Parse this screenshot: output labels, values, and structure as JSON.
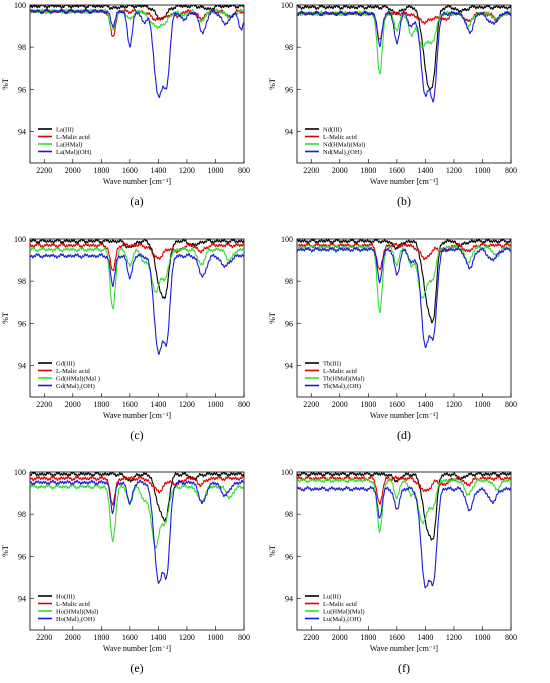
{
  "chart_data": [
    {
      "type": "line",
      "panel_label": "(a)",
      "xlabel": "Wave number [cm⁻¹]",
      "ylabel": "%T",
      "xlim": [
        2300,
        800
      ],
      "ylim": [
        92.5,
        100
      ],
      "x_ticks": [
        2200,
        2000,
        1800,
        1600,
        1400,
        1200,
        1000,
        800
      ],
      "y_ticks": [
        94,
        96,
        98,
        100
      ],
      "legend_position": "bottom-left",
      "series": [
        {
          "name": "La(III)",
          "color": "#000000",
          "baseline": 99.95,
          "peaks": [
            [
              1700,
              0.1,
              30
            ],
            [
              1380,
              0.6,
              40
            ],
            [
              1050,
              0.15,
              30
            ]
          ]
        },
        {
          "name": "L-Malic acid",
          "color": "#dd0000",
          "baseline": 99.7,
          "peaks": [
            [
              1720,
              1.2,
              18
            ],
            [
              1400,
              0.4,
              50
            ],
            [
              1270,
              0.2,
              30
            ],
            [
              1100,
              0.35,
              25
            ],
            [
              900,
              0.25,
              25
            ]
          ]
        },
        {
          "name": "La(HMal)",
          "color": "#33dd33",
          "baseline": 99.7,
          "peaks": [
            [
              1720,
              0.9,
              18
            ],
            [
              1600,
              0.4,
              20
            ],
            [
              1420,
              0.7,
              40
            ],
            [
              1350,
              0.4,
              30
            ],
            [
              1230,
              0.2,
              25
            ],
            [
              1100,
              0.5,
              25
            ],
            [
              900,
              0.3,
              25
            ]
          ]
        },
        {
          "name": "La(Mal)(OH)",
          "color": "#1a1ad8",
          "baseline": 99.7,
          "peaks": [
            [
              1720,
              0.7,
              15
            ],
            [
              1600,
              1.6,
              18
            ],
            [
              1500,
              0.5,
              20
            ],
            [
              1400,
              4.0,
              30
            ],
            [
              1340,
              3.0,
              22
            ],
            [
              1220,
              0.4,
              25
            ],
            [
              1090,
              1.0,
              25
            ],
            [
              930,
              0.6,
              30
            ],
            [
              820,
              0.8,
              20
            ]
          ]
        }
      ]
    },
    {
      "type": "line",
      "panel_label": "(b)",
      "xlabel": "Wave number [cm⁻¹]",
      "ylabel": "%T",
      "xlim": [
        2300,
        800
      ],
      "ylim": [
        92.5,
        100
      ],
      "x_ticks": [
        2200,
        2000,
        1800,
        1600,
        1400,
        1200,
        1000,
        800
      ],
      "y_ticks": [
        94,
        96,
        98,
        100
      ],
      "legend_position": "bottom-left",
      "series": [
        {
          "name": "Nd(III)",
          "color": "#000000",
          "baseline": 99.9,
          "peaks": [
            [
              1600,
              0.3,
              30
            ],
            [
              1380,
              3.5,
              35
            ],
            [
              1340,
              1.5,
              20
            ],
            [
              1150,
              0.2,
              30
            ]
          ]
        },
        {
          "name": "L-Malic acid",
          "color": "#dd0000",
          "baseline": 99.6,
          "peaks": [
            [
              1720,
              1.3,
              18
            ],
            [
              1400,
              0.4,
              50
            ],
            [
              1270,
              0.3,
              30
            ],
            [
              1100,
              0.4,
              25
            ],
            [
              900,
              0.3,
              25
            ]
          ]
        },
        {
          "name": "Nd(HMal)(Mal)",
          "color": "#33dd33",
          "baseline": 99.6,
          "peaks": [
            [
              1720,
              2.8,
              18
            ],
            [
              1600,
              0.8,
              18
            ],
            [
              1500,
              1.0,
              20
            ],
            [
              1420,
              1.6,
              30
            ],
            [
              1350,
              1.3,
              25
            ],
            [
              1100,
              0.6,
              25
            ],
            [
              900,
              0.3,
              25
            ]
          ]
        },
        {
          "name": "Nd(Mal)₂(OH)",
          "color": "#1a1ad8",
          "baseline": 99.6,
          "peaks": [
            [
              1720,
              1.6,
              15
            ],
            [
              1600,
              1.4,
              18
            ],
            [
              1500,
              0.6,
              20
            ],
            [
              1400,
              3.8,
              30
            ],
            [
              1340,
              3.5,
              22
            ],
            [
              1090,
              0.9,
              25
            ],
            [
              930,
              0.5,
              30
            ]
          ]
        }
      ]
    },
    {
      "type": "line",
      "panel_label": "(c)",
      "xlabel": "Wave number [cm⁻¹]",
      "ylabel": "%T",
      "xlim": [
        2300,
        800
      ],
      "ylim": [
        92.5,
        100
      ],
      "x_ticks": [
        2200,
        2000,
        1800,
        1600,
        1400,
        1200,
        1000,
        800
      ],
      "y_ticks": [
        94,
        96,
        98,
        100
      ],
      "legend_position": "bottom-left",
      "series": [
        {
          "name": "Gd(III)",
          "color": "#000000",
          "baseline": 99.9,
          "peaks": [
            [
              1600,
              0.3,
              30
            ],
            [
              1380,
              2.4,
              35
            ],
            [
              1340,
              1.0,
              20
            ],
            [
              1150,
              0.2,
              30
            ]
          ]
        },
        {
          "name": "L-Malic acid",
          "color": "#dd0000",
          "baseline": 99.7,
          "peaks": [
            [
              1720,
              1.2,
              18
            ],
            [
              1400,
              0.6,
              40
            ],
            [
              1270,
              0.3,
              30
            ],
            [
              1100,
              0.3,
              25
            ]
          ]
        },
        {
          "name": "Gd(HMal)(Mal )",
          "color": "#33dd33",
          "baseline": 99.5,
          "peaks": [
            [
              1720,
              2.8,
              18
            ],
            [
              1600,
              0.8,
              18
            ],
            [
              1500,
              0.6,
              20
            ],
            [
              1420,
              2.0,
              30
            ],
            [
              1350,
              1.2,
              25
            ],
            [
              1100,
              0.7,
              25
            ],
            [
              900,
              0.5,
              25
            ]
          ]
        },
        {
          "name": "Gd(Mal)₂(OH)",
          "color": "#1a1ad8",
          "baseline": 99.2,
          "peaks": [
            [
              1720,
              1.4,
              15
            ],
            [
              1600,
              1.0,
              18
            ],
            [
              1400,
              4.5,
              30
            ],
            [
              1340,
              3.5,
              22
            ],
            [
              1090,
              1.0,
              25
            ],
            [
              930,
              0.5,
              30
            ]
          ]
        }
      ]
    },
    {
      "type": "line",
      "panel_label": "(d)",
      "xlabel": "Wave number [cm⁻¹]",
      "ylabel": "%T",
      "xlim": [
        2300,
        800
      ],
      "ylim": [
        92.5,
        100
      ],
      "x_ticks": [
        2200,
        2000,
        1800,
        1600,
        1400,
        1200,
        1000,
        800
      ],
      "y_ticks": [
        94,
        96,
        98,
        100
      ],
      "legend_position": "bottom-left",
      "series": [
        {
          "name": "Tb(III)",
          "color": "#000000",
          "baseline": 99.9,
          "peaks": [
            [
              1600,
              0.3,
              30
            ],
            [
              1380,
              3.0,
              35
            ],
            [
              1340,
              2.0,
              20
            ],
            [
              1150,
              0.2,
              30
            ]
          ]
        },
        {
          "name": "L-Malic acid",
          "color": "#dd0000",
          "baseline": 99.7,
          "peaks": [
            [
              1720,
              1.2,
              18
            ],
            [
              1400,
              0.6,
              40
            ],
            [
              1270,
              0.3,
              30
            ],
            [
              1100,
              0.3,
              25
            ]
          ]
        },
        {
          "name": "Tb(HMal)(Mal)",
          "color": "#33dd33",
          "baseline": 99.6,
          "peaks": [
            [
              1720,
              3.0,
              18
            ],
            [
              1600,
              0.8,
              18
            ],
            [
              1500,
              0.8,
              20
            ],
            [
              1420,
              2.4,
              30
            ],
            [
              1350,
              1.4,
              25
            ],
            [
              1100,
              0.7,
              25
            ],
            [
              900,
              0.4,
              25
            ]
          ]
        },
        {
          "name": "Tb(Mal)₂(OH)",
          "color": "#1a1ad8",
          "baseline": 99.5,
          "peaks": [
            [
              1720,
              1.6,
              15
            ],
            [
              1600,
              1.2,
              18
            ],
            [
              1500,
              0.6,
              20
            ],
            [
              1400,
              4.5,
              30
            ],
            [
              1340,
              3.5,
              22
            ],
            [
              1090,
              0.9,
              25
            ],
            [
              930,
              0.5,
              30
            ]
          ]
        }
      ]
    },
    {
      "type": "line",
      "panel_label": "(e)",
      "xlabel": "Wave number [cm⁻¹]",
      "ylabel": "%T",
      "xlim": [
        2300,
        800
      ],
      "ylim": [
        92.5,
        100
      ],
      "x_ticks": [
        2200,
        2000,
        1800,
        1600,
        1400,
        1200,
        1000,
        800
      ],
      "y_ticks": [
        94,
        96,
        98,
        100
      ],
      "legend_position": "bottom-left",
      "series": [
        {
          "name": "Ho(III)",
          "color": "#000000",
          "baseline": 99.9,
          "peaks": [
            [
              1600,
              0.3,
              30
            ],
            [
              1380,
              1.8,
              35
            ],
            [
              1340,
              1.0,
              20
            ],
            [
              1150,
              0.2,
              30
            ]
          ]
        },
        {
          "name": "L-Malic acid",
          "color": "#dd0000",
          "baseline": 99.7,
          "peaks": [
            [
              1720,
              1.2,
              18
            ],
            [
              1400,
              0.6,
              40
            ],
            [
              1270,
              0.3,
              30
            ],
            [
              1100,
              0.3,
              25
            ]
          ]
        },
        {
          "name": "Ho(HMal)(Mal)",
          "color": "#33dd33",
          "baseline": 99.3,
          "peaks": [
            [
              1720,
              2.6,
              18
            ],
            [
              1600,
              0.8,
              18
            ],
            [
              1500,
              0.6,
              20
            ],
            [
              1420,
              2.8,
              30
            ],
            [
              1350,
              1.5,
              25
            ],
            [
              1100,
              0.7,
              25
            ],
            [
              900,
              0.5,
              25
            ]
          ]
        },
        {
          "name": "Ho(Mal)₂(OH)",
          "color": "#1a1ad8",
          "baseline": 99.5,
          "peaks": [
            [
              1720,
              1.4,
              15
            ],
            [
              1600,
              1.0,
              18
            ],
            [
              1400,
              4.6,
              30
            ],
            [
              1340,
              3.8,
              22
            ],
            [
              1090,
              1.0,
              25
            ],
            [
              930,
              0.6,
              30
            ]
          ]
        }
      ]
    },
    {
      "type": "line",
      "panel_label": "(f)",
      "xlabel": "Wave number [cm⁻¹]",
      "ylabel": "%T",
      "xlim": [
        2300,
        800
      ],
      "ylim": [
        92.5,
        100
      ],
      "x_ticks": [
        2200,
        2000,
        1800,
        1600,
        1400,
        1200,
        1000,
        800
      ],
      "y_ticks": [
        94,
        96,
        98,
        100
      ],
      "legend_position": "bottom-left",
      "series": [
        {
          "name": "Lu(III)",
          "color": "#000000",
          "baseline": 99.9,
          "peaks": [
            [
              1600,
              0.3,
              30
            ],
            [
              1380,
              2.6,
              35
            ],
            [
              1340,
              1.5,
              20
            ],
            [
              1150,
              0.2,
              30
            ]
          ]
        },
        {
          "name": "L-Malic acid",
          "color": "#dd0000",
          "baseline": 99.7,
          "peaks": [
            [
              1720,
              1.2,
              18
            ],
            [
              1400,
              0.6,
              40
            ],
            [
              1270,
              0.3,
              30
            ],
            [
              1100,
              0.3,
              25
            ]
          ]
        },
        {
          "name": "Lu(HMal)(Mal)",
          "color": "#33dd33",
          "baseline": 99.6,
          "peaks": [
            [
              1720,
              2.4,
              18
            ],
            [
              1600,
              0.8,
              18
            ],
            [
              1500,
              0.6,
              20
            ],
            [
              1420,
              2.0,
              30
            ],
            [
              1350,
              1.2,
              25
            ],
            [
              1100,
              0.7,
              25
            ],
            [
              900,
              0.4,
              25
            ]
          ]
        },
        {
          "name": "Lu(Mal)₂(OH)",
          "color": "#1a1ad8",
          "baseline": 99.2,
          "peaks": [
            [
              1720,
              1.4,
              15
            ],
            [
              1600,
              1.0,
              18
            ],
            [
              1400,
              4.6,
              30
            ],
            [
              1340,
              3.8,
              22
            ],
            [
              1090,
              1.0,
              25
            ],
            [
              930,
              0.6,
              30
            ]
          ]
        }
      ]
    }
  ]
}
